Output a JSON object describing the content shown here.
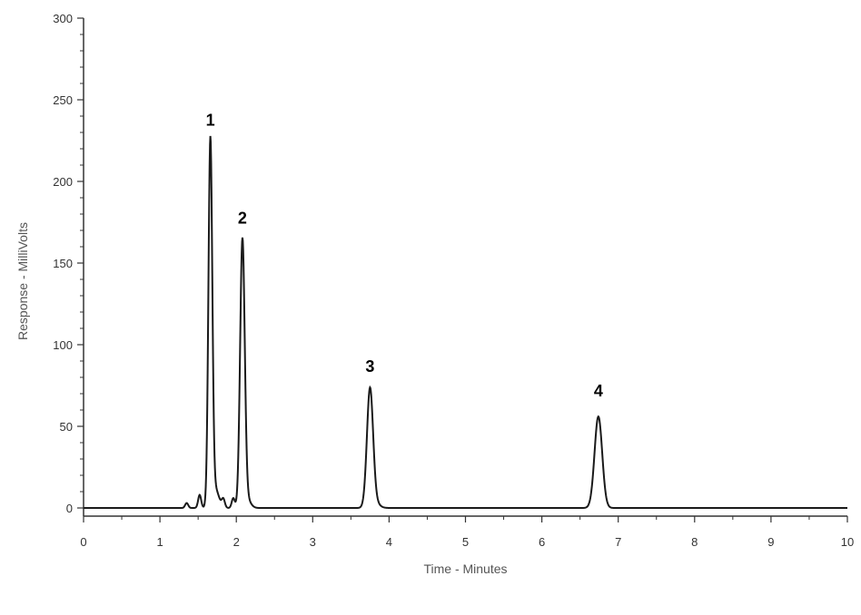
{
  "chart_data": {
    "type": "line",
    "title": "",
    "xlabel": "Time - Minutes",
    "ylabel": "Response - MilliVolts",
    "xlim": [
      0,
      10
    ],
    "ylim": [
      0,
      300
    ],
    "x_ticks": [
      "0",
      "1",
      "2",
      "3",
      "4",
      "5",
      "6",
      "7",
      "8",
      "9",
      "10"
    ],
    "y_ticks": [
      "0",
      "50",
      "100",
      "150",
      "200",
      "250",
      "300"
    ],
    "grid": false,
    "legend": "none",
    "line_color": "#1a1a1a",
    "peaks": [
      {
        "label": "1",
        "x": 1.66,
        "y": 222
      },
      {
        "label": "2",
        "x": 2.08,
        "y": 162
      },
      {
        "label": "3",
        "x": 3.75,
        "y": 71
      },
      {
        "label": "4",
        "x": 6.74,
        "y": 56
      }
    ],
    "minor_peaks": [
      {
        "x": 1.35,
        "y": 3
      },
      {
        "x": 1.52,
        "y": 8
      },
      {
        "x": 1.83,
        "y": 5
      },
      {
        "x": 1.96,
        "y": 6
      }
    ]
  }
}
